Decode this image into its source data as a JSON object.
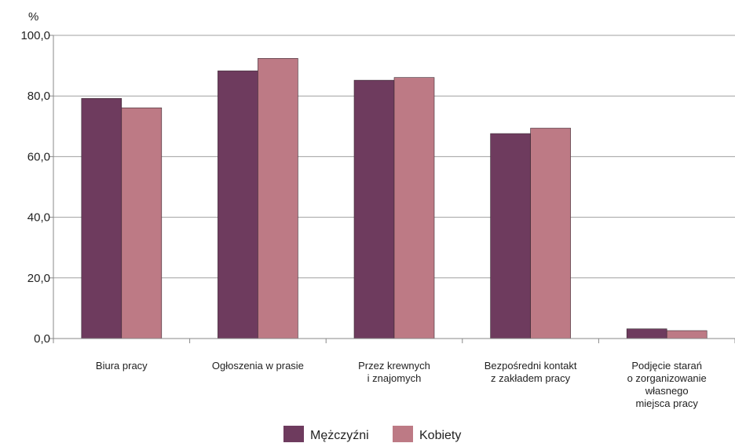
{
  "chart_data": {
    "type": "bar",
    "y_unit": "%",
    "ylim": [
      0,
      100
    ],
    "y_ticks": [
      "0,0",
      "20,0",
      "40,0",
      "60,0",
      "80,0",
      "100,0"
    ],
    "y_tick_values": [
      0,
      20,
      40,
      60,
      80,
      100
    ],
    "grid": true,
    "legend_position": "bottom",
    "categories": [
      [
        "Biura  pracy"
      ],
      [
        "Ogłoszenia w prasie"
      ],
      [
        "Przez krewnych",
        "i znajomych"
      ],
      [
        "Bezpośredni kontakt",
        "z zakładem pracy"
      ],
      [
        "Podjęcie starań",
        "o zorganizowanie",
        "własnego",
        "miejsca pracy"
      ]
    ],
    "series": [
      {
        "name": "Mężczyźni",
        "color": "#6e3b5e",
        "values": [
          79.2,
          88.3,
          85.2,
          67.6,
          3.2
        ]
      },
      {
        "name": "Kobiety",
        "color": "#bd7a85",
        "values": [
          76.1,
          92.4,
          86.1,
          69.4,
          2.6
        ]
      }
    ]
  }
}
